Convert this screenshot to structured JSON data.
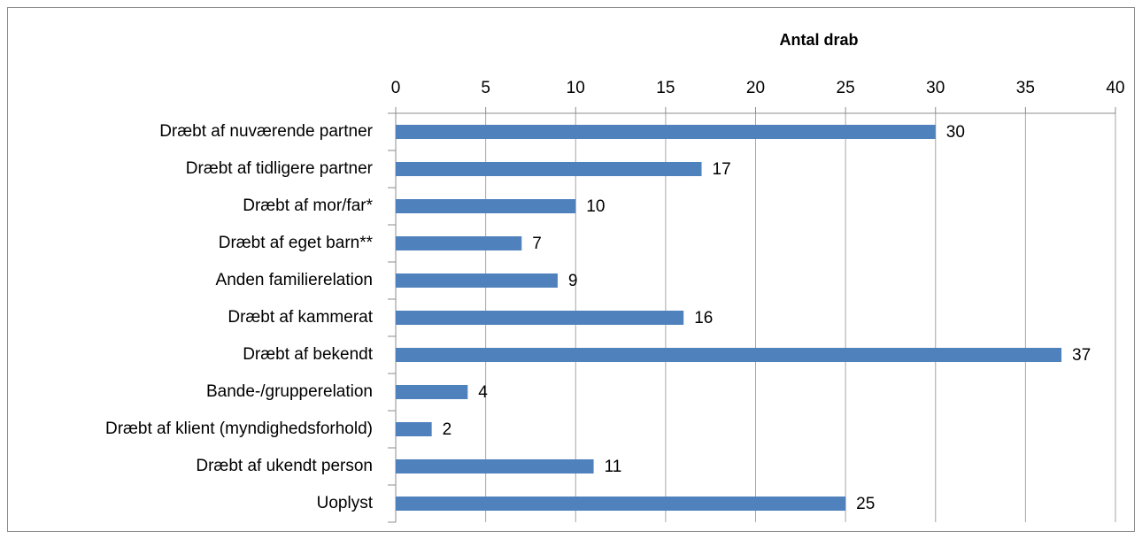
{
  "chart_data": {
    "type": "bar",
    "orientation": "horizontal",
    "x_label": "Antal drab",
    "categories": [
      "Dræbt af nuværende partner",
      "Dræbt af tidligere partner",
      "Dræbt af mor/far*",
      "Dræbt af eget barn**",
      "Anden familierelation",
      "Dræbt af kammerat",
      "Dræbt af bekendt",
      "Bande-/grupperelation",
      "Dræbt af klient (myndighedsforhold)",
      "Dræbt af ukendt person",
      "Uoplyst"
    ],
    "values": [
      30,
      17,
      10,
      7,
      9,
      16,
      37,
      4,
      2,
      11,
      25
    ],
    "color": "#4f81bd",
    "xlim": [
      0,
      40
    ],
    "xticks": [
      0,
      5,
      10,
      15,
      20,
      25,
      30,
      35,
      40
    ],
    "grid": true
  }
}
